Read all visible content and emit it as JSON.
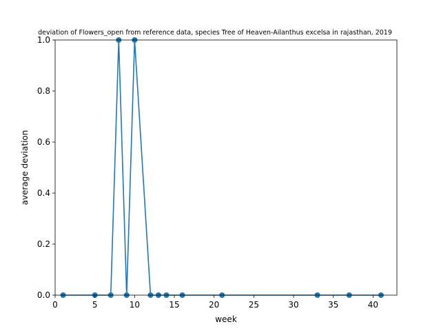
{
  "chart_data": {
    "type": "line",
    "title": "deviation of Flowers_open from reference data, species Tree of Heaven-Ailanthus excelsa in rajasthan, 2019",
    "xlabel": "week",
    "ylabel": "average deviation",
    "xlim": [
      0,
      43
    ],
    "ylim": [
      0,
      1.0
    ],
    "xticks": [
      0,
      5,
      10,
      15,
      20,
      25,
      30,
      35,
      40
    ],
    "yticks": [
      0.0,
      0.2,
      0.4,
      0.6,
      0.8,
      1.0
    ],
    "grid": false,
    "series": [
      {
        "color": "#1f77b4",
        "x": [
          1,
          5,
          7,
          8,
          9,
          10,
          12,
          13,
          14,
          16,
          21,
          33,
          37,
          41
        ],
        "y": [
          0,
          0,
          0,
          1,
          0,
          1,
          0,
          0,
          0,
          0,
          0,
          0,
          0,
          0
        ]
      }
    ]
  }
}
